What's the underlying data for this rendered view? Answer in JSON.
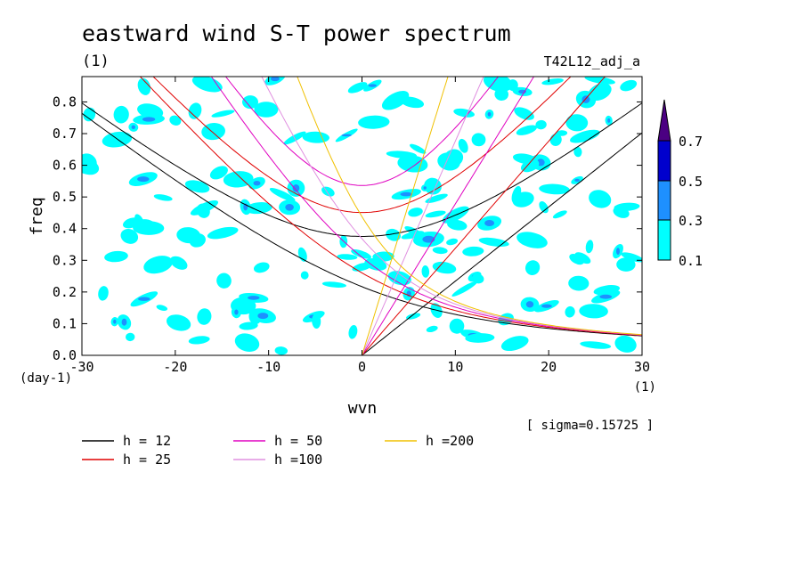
{
  "chart_data": {
    "type": "contour",
    "title": "eastward wind S-T power spectrum",
    "title_units": "(1)",
    "run_label": "T42L12_adj_a",
    "xlabel": "wvn",
    "x_units": "(1)",
    "ylabel": "freq",
    "y_units": "(day-1)",
    "xlim": [
      -30,
      30
    ],
    "ylim": [
      0,
      0.88
    ],
    "x_ticks": [
      -30,
      -20,
      -10,
      0,
      10,
      20,
      30
    ],
    "x_tick_labels": [
      "-30",
      "-20",
      "-10",
      "0",
      "10",
      "20",
      "30"
    ],
    "y_ticks": [
      0,
      0.1,
      0.2,
      0.3,
      0.4,
      0.5,
      0.6,
      0.7,
      0.8
    ],
    "y_tick_labels": [
      "0.0",
      "0.1",
      "0.2",
      "0.3",
      "0.4",
      "0.5",
      "0.6",
      "0.7",
      "0.8"
    ],
    "sigma_note": "[ sigma=0.15725 ]",
    "colorbar": {
      "levels": [
        "0.1",
        "0.3",
        "0.5",
        "0.7"
      ],
      "colors": [
        "#00ffff",
        "#1e90ff",
        "#0000cd",
        "#4b0082"
      ]
    },
    "dispersion_curves": [
      {
        "label": "h = 12",
        "h": 12,
        "color": "#000000"
      },
      {
        "label": "h = 25",
        "h": 25,
        "color": "#e00000"
      },
      {
        "label": "h = 50",
        "h": 50,
        "color": "#e000c0"
      },
      {
        "label": "h =100",
        "h": 100,
        "color": "#e090e0"
      },
      {
        "label": "h =200",
        "h": 200,
        "color": "#f0c000"
      }
    ]
  }
}
